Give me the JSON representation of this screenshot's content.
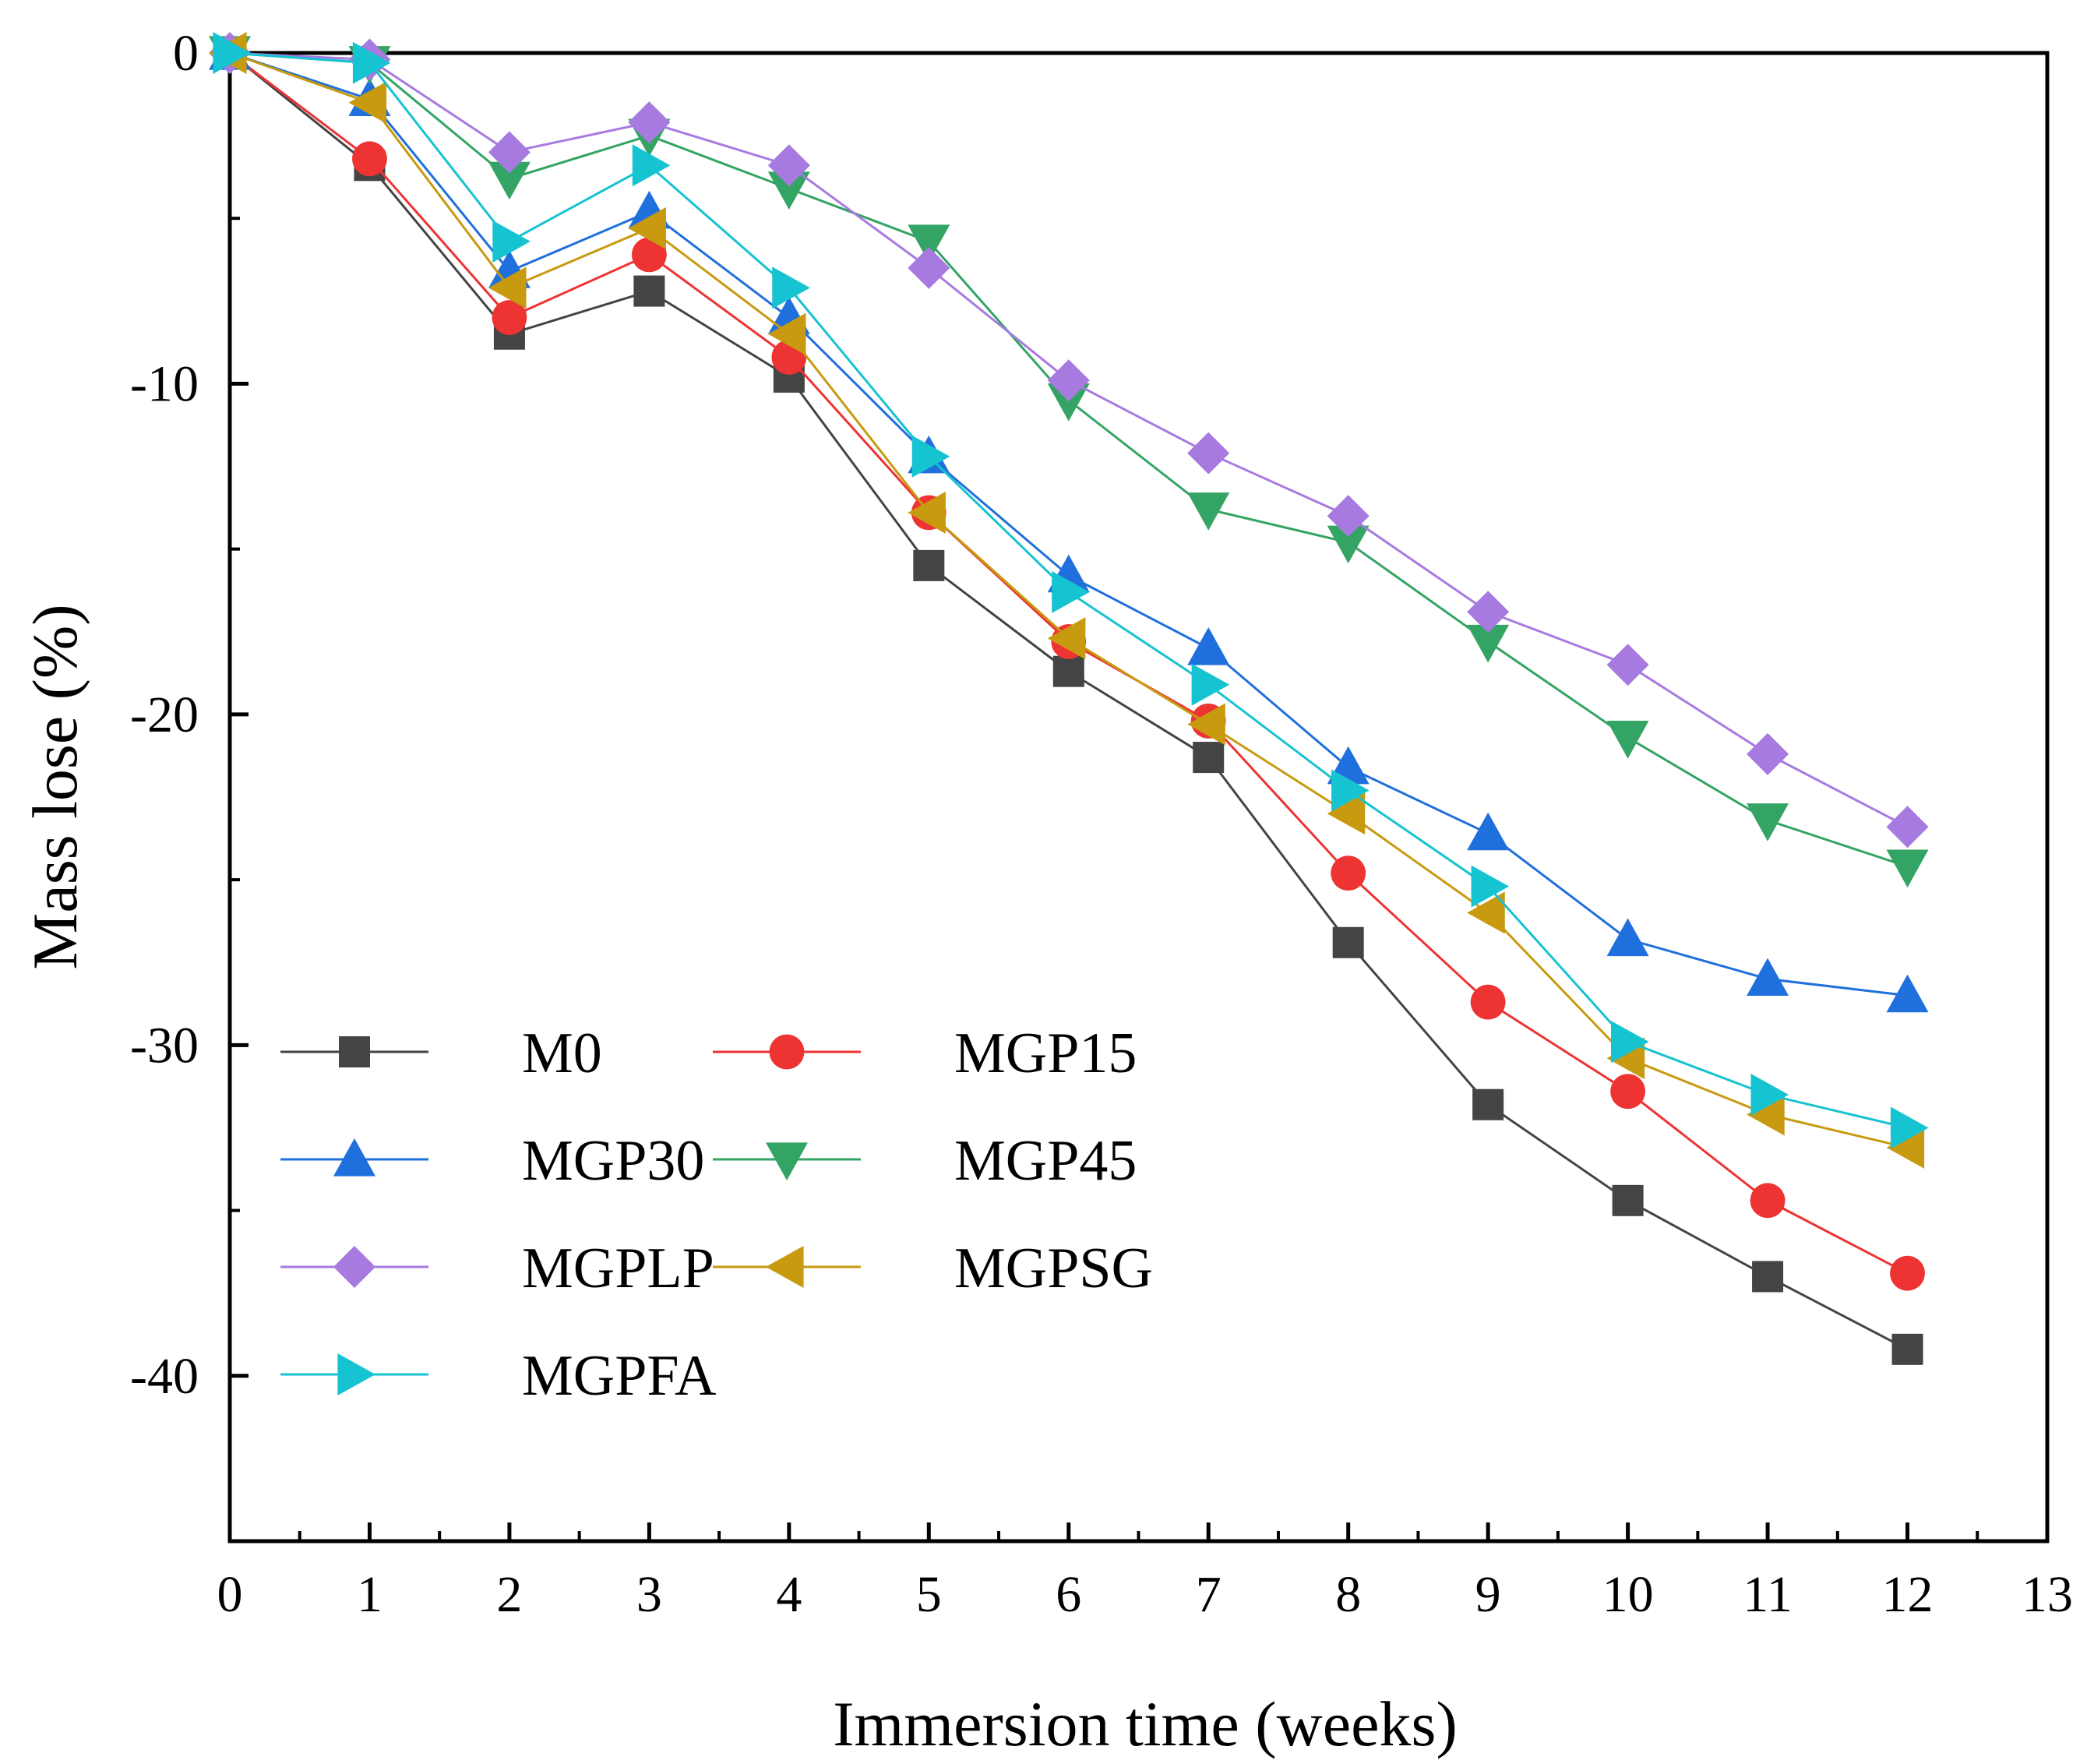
{
  "chart_data": {
    "type": "line",
    "title": "",
    "xlabel": "Immersion time (weeks)",
    "ylabel": "Mass lose (%)",
    "xlim": [
      0,
      13
    ],
    "ylim": [
      -45,
      0
    ],
    "xticks": [
      0,
      1,
      2,
      3,
      4,
      5,
      6,
      7,
      8,
      9,
      10,
      11,
      12,
      13
    ],
    "yticks": [
      0,
      -10,
      -20,
      -30,
      -40
    ],
    "grid": false,
    "legend_position": "lower-left",
    "x": [
      0,
      1,
      2,
      3,
      4,
      5,
      6,
      7,
      8,
      9,
      10,
      11,
      12
    ],
    "series": [
      {
        "name": "M0",
        "color": "#444444",
        "marker": "square",
        "values": [
          0,
          -3.4,
          -8.5,
          -7.2,
          -9.8,
          -15.5,
          -18.7,
          -21.3,
          -26.9,
          -31.8,
          -34.7,
          -37.0,
          -39.2
        ]
      },
      {
        "name": "MGP15",
        "color": "#ee3333",
        "marker": "circle",
        "values": [
          0,
          -3.2,
          -8.0,
          -6.1,
          -9.2,
          -13.9,
          -17.8,
          -20.2,
          -24.8,
          -28.7,
          -31.4,
          -34.7,
          -36.9
        ]
      },
      {
        "name": "MGP30",
        "color": "#1f6fdd",
        "marker": "triangle-up",
        "values": [
          0,
          -1.4,
          -6.6,
          -4.8,
          -8.0,
          -12.2,
          -15.8,
          -18.0,
          -21.6,
          -23.6,
          -26.8,
          -28.0,
          -28.5
        ]
      },
      {
        "name": "MGP45",
        "color": "#33a463",
        "marker": "triangle-down",
        "values": [
          0,
          -0.3,
          -3.8,
          -2.5,
          -4.1,
          -5.7,
          -10.5,
          -13.8,
          -14.8,
          -17.8,
          -20.7,
          -23.2,
          -24.6
        ]
      },
      {
        "name": "MGPLP",
        "color": "#a77ae0",
        "marker": "diamond",
        "values": [
          0,
          -0.2,
          -3.0,
          -2.1,
          -3.4,
          -6.5,
          -9.9,
          -12.1,
          -14.0,
          -16.9,
          -18.5,
          -21.2,
          -23.4
        ]
      },
      {
        "name": "MGPSG",
        "color": "#c79a10",
        "marker": "triangle-left",
        "values": [
          0,
          -1.5,
          -7.1,
          -5.3,
          -8.5,
          -13.9,
          -17.7,
          -20.3,
          -23.0,
          -26.0,
          -30.4,
          -32.1,
          -33.1
        ]
      },
      {
        "name": "MGPFA",
        "color": "#16c3d0",
        "marker": "triangle-right",
        "values": [
          0,
          -0.3,
          -5.7,
          -3.4,
          -7.1,
          -12.2,
          -16.3,
          -19.1,
          -22.3,
          -25.2,
          -29.9,
          -31.5,
          -32.5
        ]
      }
    ]
  }
}
